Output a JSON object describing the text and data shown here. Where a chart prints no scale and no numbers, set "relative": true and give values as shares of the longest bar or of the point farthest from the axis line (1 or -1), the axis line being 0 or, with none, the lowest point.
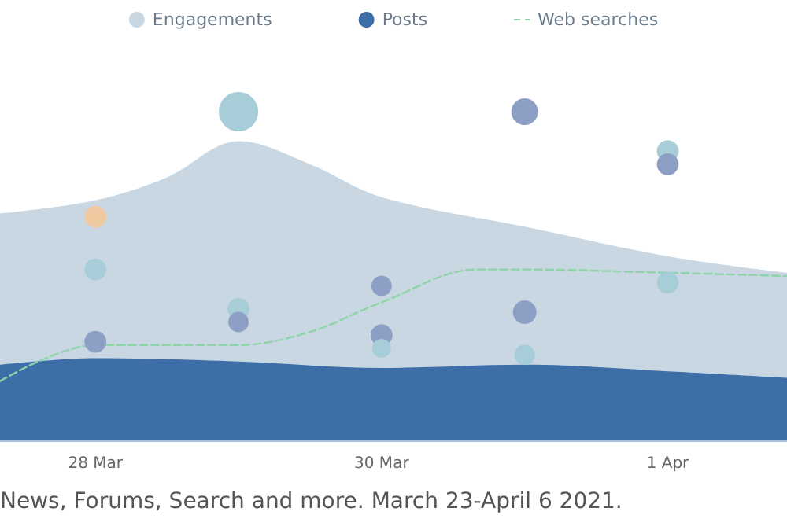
{
  "chart_data": {
    "type": "area",
    "relative": true,
    "legend": "top",
    "annotations": [
      "News, Forums, Search and more. March 23-April 6 2021."
    ],
    "xlim": [
      "2021-03-27T08:00",
      "2021-04-01T20:00"
    ],
    "xticks": [
      {
        "value": "2021-03-28",
        "label": "28 Mar"
      },
      {
        "value": "2021-03-30",
        "label": "30 Mar"
      },
      {
        "value": "2021-04-01",
        "label": "1 Apr"
      }
    ],
    "series": [
      {
        "name": "Engagements",
        "color": "#c8d7e2",
        "x": [
          "2021-03-27T08:00",
          "2021-03-28",
          "2021-03-28T12:00",
          "2021-03-29",
          "2021-03-29T12:00",
          "2021-03-30",
          "2021-03-31",
          "2021-04-01",
          "2021-04-01T20:00"
        ],
        "values": [
          0.69,
          0.73,
          0.8,
          0.91,
          0.84,
          0.74,
          0.65,
          0.56,
          0.51
        ]
      },
      {
        "name": "Posts",
        "color": "#3d6ea8",
        "x": [
          "2021-03-27T08:00",
          "2021-03-28",
          "2021-03-29",
          "2021-03-30",
          "2021-03-31",
          "2021-04-01",
          "2021-04-01T20:00"
        ],
        "values": [
          0.23,
          0.25,
          0.24,
          0.22,
          0.23,
          0.21,
          0.19
        ]
      },
      {
        "name": "Web searches",
        "type": "line",
        "line_style": "dashed",
        "color": "#8fd4a8",
        "x": [
          "2021-03-27T08:00",
          "2021-03-28",
          "2021-03-29",
          "2021-03-29T12:00",
          "2021-03-30",
          "2021-03-30T16:00",
          "2021-03-31",
          "2021-04-01",
          "2021-04-01T20:00"
        ],
        "values": [
          0.18,
          0.29,
          0.29,
          0.33,
          0.42,
          0.52,
          0.52,
          0.51,
          0.5
        ]
      },
      {
        "type": "bubble",
        "x": [
          "2021-03-28",
          "2021-03-28",
          "2021-03-28",
          "2021-03-29",
          "2021-03-29",
          "2021-03-29",
          "2021-03-30",
          "2021-03-30",
          "2021-03-30",
          "2021-03-31",
          "2021-03-31",
          "2021-03-31",
          "2021-04-01",
          "2021-04-01",
          "2021-04-01"
        ],
        "values": [
          0.68,
          0.52,
          0.3,
          1.0,
          0.4,
          0.36,
          0.47,
          0.32,
          0.28,
          1.0,
          0.39,
          0.26,
          0.88,
          0.84,
          0.48
        ],
        "sizes": [
          0.31,
          0.31,
          0.31,
          1.0,
          0.31,
          0.27,
          0.27,
          0.31,
          0.23,
          0.46,
          0.36,
          0.27,
          0.31,
          0.31,
          0.31
        ],
        "colors": [
          "#f0c9a0",
          "#a6cdd8",
          "#8d9fc4",
          "#a6cdd8",
          "#a6cdd8",
          "#8d9fc4",
          "#8d9fc4",
          "#8d9fc4",
          "#a6cdd8",
          "#8d9fc4",
          "#8d9fc4",
          "#a6cdd8",
          "#a6cdd8",
          "#8d9fc4",
          "#a6cdd8"
        ]
      }
    ]
  }
}
